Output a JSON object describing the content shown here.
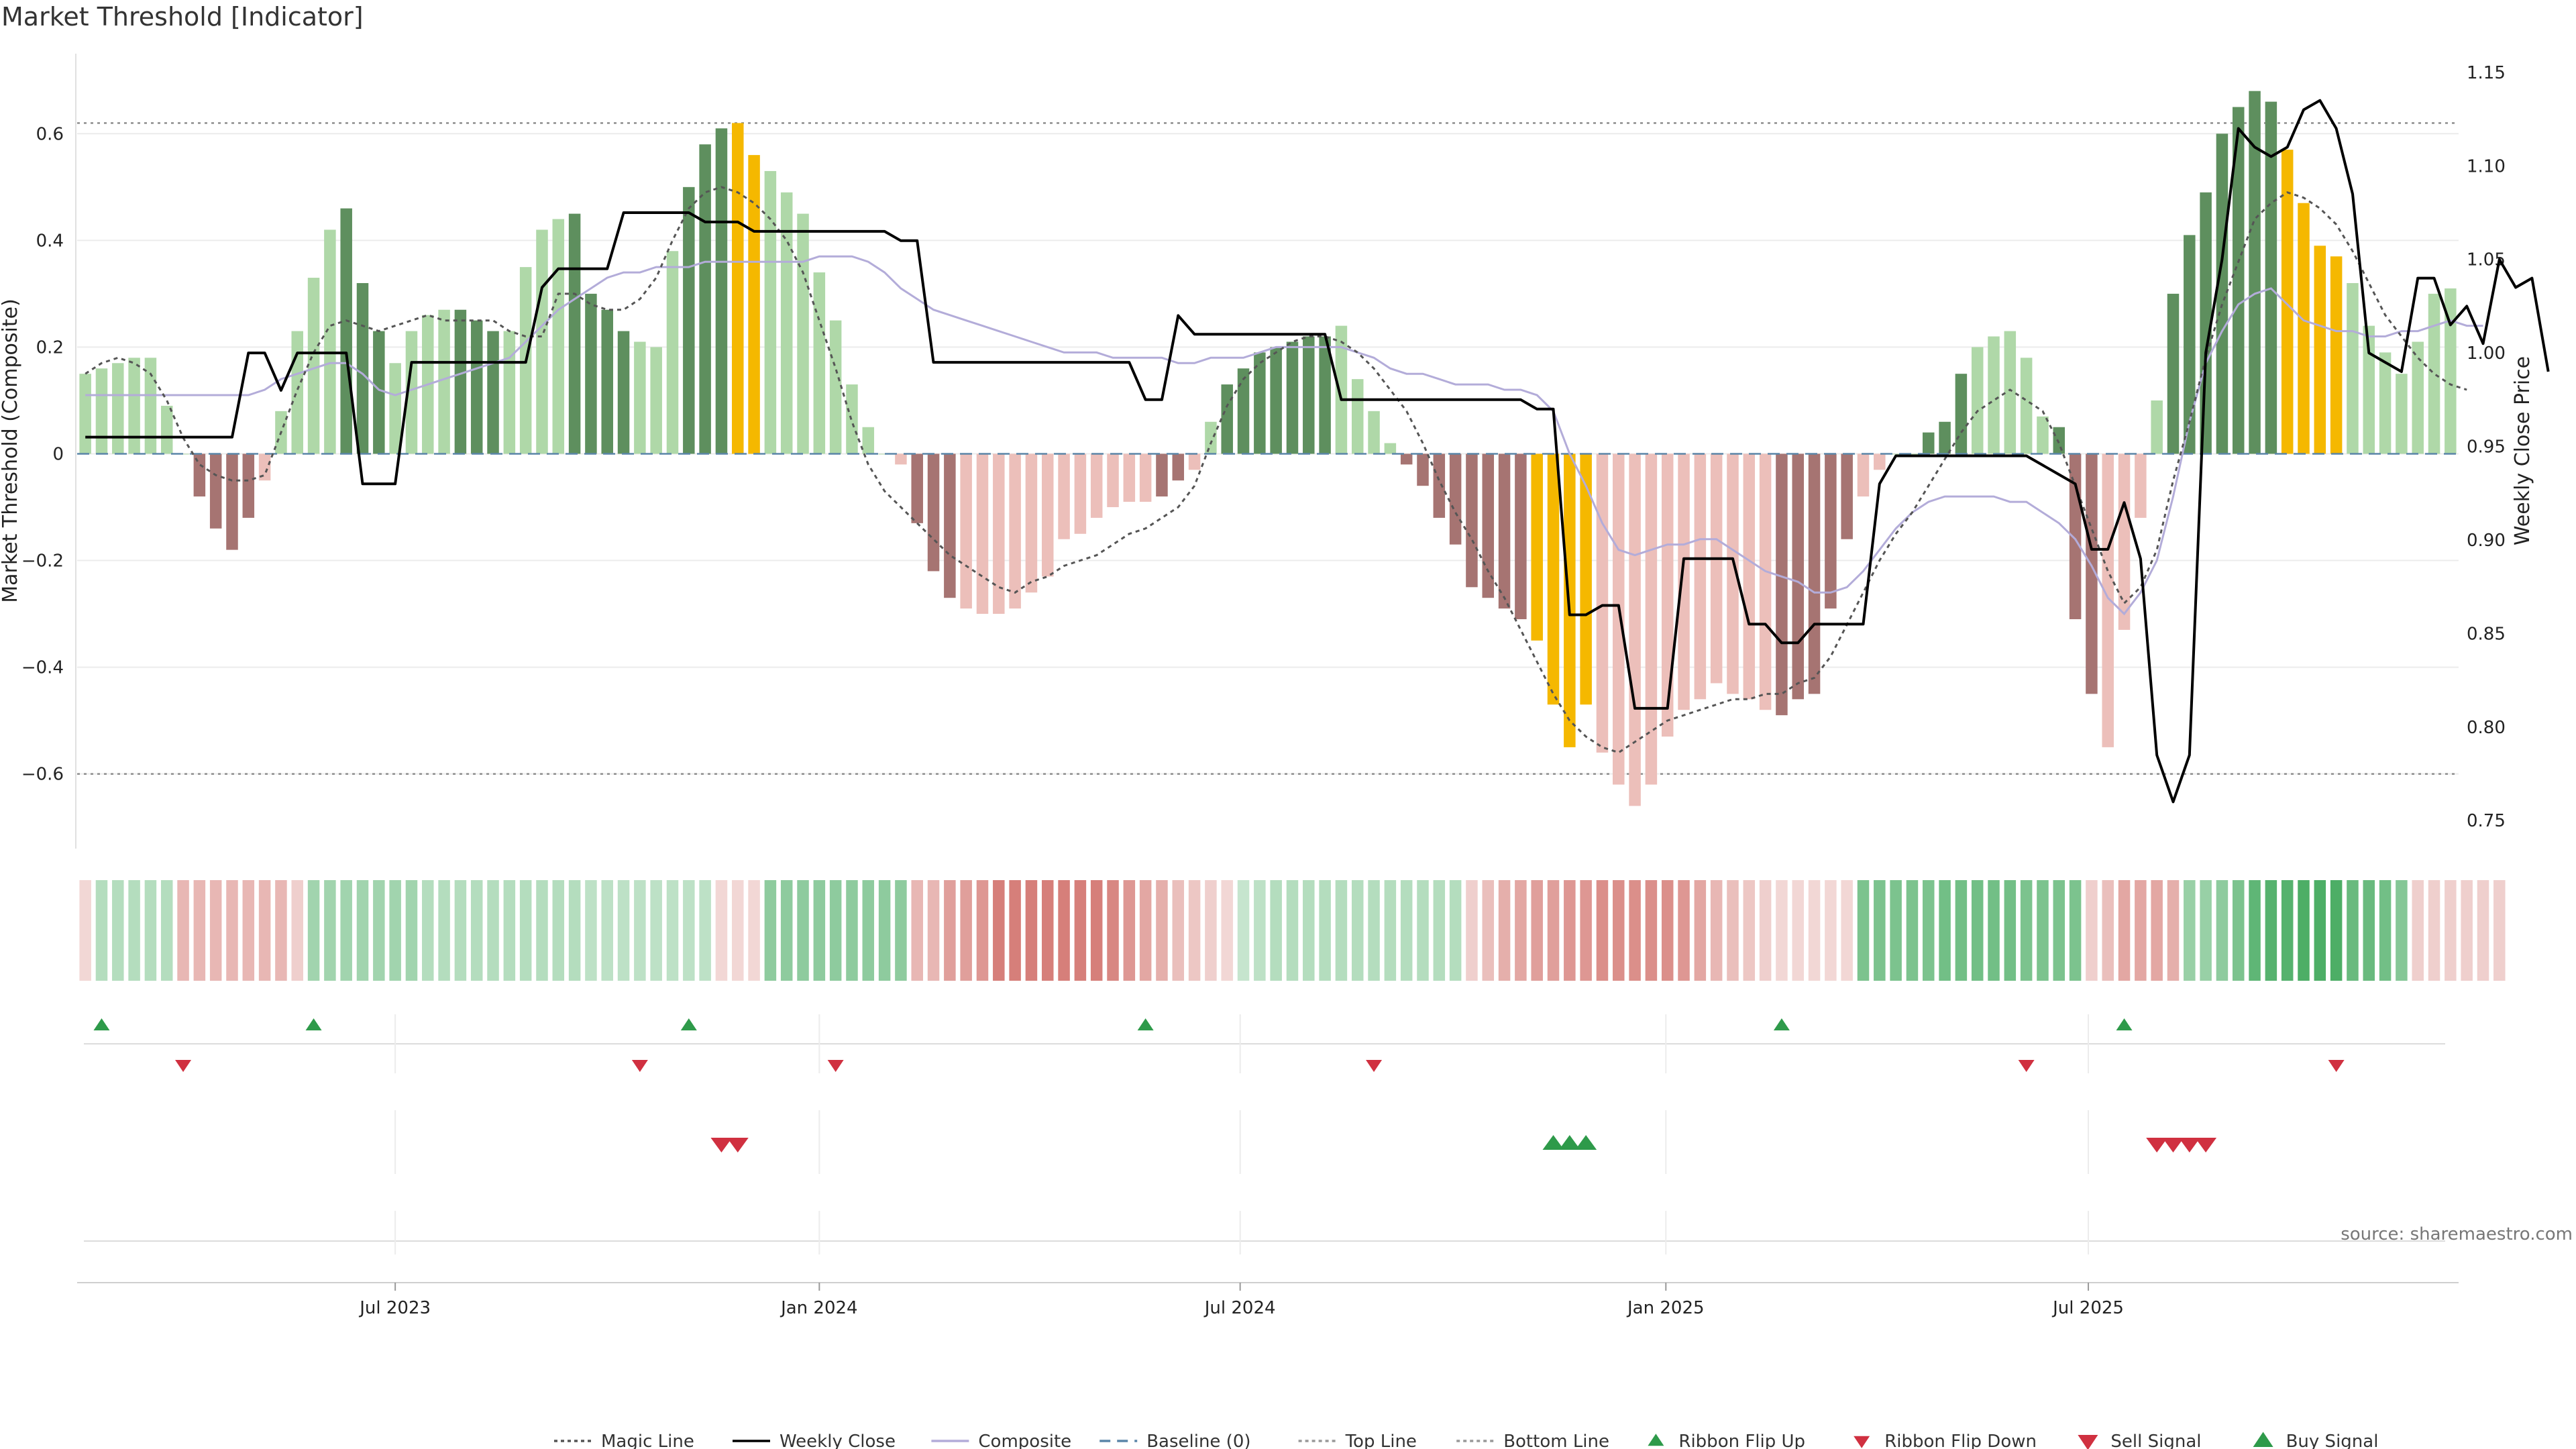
{
  "chart_data": {
    "type": "bar",
    "title": "Market Threshold [Indicator]",
    "ylabel": "Market Threshold (Composite)",
    "y2label": "Weekly Close Price",
    "ylim": [
      -0.74,
      0.75
    ],
    "y2lim": [
      0.735,
      1.16
    ],
    "yticks": [
      -0.6,
      -0.4,
      -0.2,
      0,
      0.2,
      0.4,
      0.6
    ],
    "ytick_labels": [
      "−0.6",
      "−0.4",
      "−0.2",
      "0",
      "0.2",
      "0.4",
      "0.6"
    ],
    "y2ticks": [
      0.75,
      0.8,
      0.85,
      0.9,
      0.95,
      1.0,
      1.05,
      1.1,
      1.15
    ],
    "y2tick_labels": [
      "0.75",
      "0.80",
      "0.85",
      "0.90",
      "0.95",
      "1.00",
      "1.05",
      "1.10",
      "1.15"
    ],
    "xtick_labels": [
      {
        "label": "Jul 2023",
        "index": 19.5
      },
      {
        "label": "Jan 2024",
        "index": 45.5
      },
      {
        "label": "Jul 2024",
        "index": 71.3
      },
      {
        "label": "Jan 2025",
        "index": 97.4
      },
      {
        "label": "Jul 2025",
        "index": 123.3
      }
    ],
    "top_line": 0.62,
    "bottom_line": -0.6,
    "composite": [
      0.15,
      0.16,
      0.17,
      0.18,
      0.18,
      0.09,
      0.0,
      -0.08,
      -0.14,
      -0.18,
      -0.12,
      -0.05,
      0.08,
      0.23,
      0.33,
      0.42,
      0.46,
      0.32,
      0.23,
      0.17,
      0.23,
      0.26,
      0.27,
      0.27,
      0.25,
      0.23,
      0.23,
      0.35,
      0.42,
      0.44,
      0.45,
      0.3,
      0.27,
      0.23,
      0.21,
      0.2,
      0.38,
      0.5,
      0.58,
      0.61,
      0.62,
      0.56,
      0.53,
      0.49,
      0.45,
      0.34,
      0.25,
      0.13,
      0.05,
      0.0,
      -0.02,
      -0.13,
      -0.22,
      -0.27,
      -0.29,
      -0.3,
      -0.3,
      -0.29,
      -0.26,
      -0.23,
      -0.16,
      -0.15,
      -0.12,
      -0.1,
      -0.09,
      -0.09,
      -0.08,
      -0.05,
      -0.03,
      0.06,
      0.13,
      0.16,
      0.19,
      0.2,
      0.21,
      0.22,
      0.22,
      0.24,
      0.14,
      0.08,
      0.02,
      -0.02,
      -0.06,
      -0.12,
      -0.17,
      -0.25,
      -0.27,
      -0.29,
      -0.31,
      -0.35,
      -0.47,
      -0.55,
      -0.47,
      -0.56,
      -0.62,
      -0.66,
      -0.62,
      -0.53,
      -0.48,
      -0.46,
      -0.43,
      -0.45,
      -0.46,
      -0.48,
      -0.49,
      -0.46,
      -0.45,
      -0.29,
      -0.16,
      -0.08,
      -0.03,
      0.0,
      0.0,
      0.04,
      0.06,
      0.15,
      0.2,
      0.22,
      0.23,
      0.18,
      0.07,
      0.05,
      -0.31,
      -0.45,
      -0.55,
      -0.33,
      -0.12,
      0.1,
      0.3,
      0.41,
      0.49,
      0.6,
      0.65,
      0.68,
      0.66,
      0.57,
      0.47,
      0.39,
      0.37,
      0.32,
      0.24,
      0.19,
      0.15,
      0.21,
      0.3,
      0.31
    ],
    "bar_classes": "lllllllddddllllldddlllldddllllddddllldddyyllllllllldddllllllllllllddlldddddddllllddddddddyyyyllllllllllldddddlllldddllllldddlllldddddddyyyyllllllllldd",
    "magic_line": [
      0.15,
      0.17,
      0.18,
      0.17,
      0.15,
      0.1,
      0.03,
      -0.02,
      -0.04,
      -0.05,
      -0.05,
      -0.04,
      0.04,
      0.12,
      0.19,
      0.24,
      0.25,
      0.24,
      0.23,
      0.24,
      0.25,
      0.26,
      0.25,
      0.25,
      0.25,
      0.25,
      0.23,
      0.22,
      0.22,
      0.3,
      0.3,
      0.28,
      0.27,
      0.27,
      0.29,
      0.33,
      0.4,
      0.46,
      0.49,
      0.5,
      0.49,
      0.47,
      0.44,
      0.4,
      0.34,
      0.25,
      0.16,
      0.06,
      -0.02,
      -0.07,
      -0.1,
      -0.13,
      -0.16,
      -0.19,
      -0.21,
      -0.23,
      -0.25,
      -0.26,
      -0.24,
      -0.23,
      -0.21,
      -0.2,
      -0.19,
      -0.17,
      -0.15,
      -0.14,
      -0.12,
      -0.1,
      -0.06,
      0.02,
      0.09,
      0.14,
      0.17,
      0.19,
      0.21,
      0.22,
      0.22,
      0.21,
      0.19,
      0.16,
      0.12,
      0.08,
      0.02,
      -0.05,
      -0.11,
      -0.16,
      -0.22,
      -0.27,
      -0.33,
      -0.39,
      -0.45,
      -0.5,
      -0.53,
      -0.55,
      -0.56,
      -0.54,
      -0.52,
      -0.5,
      -0.49,
      -0.48,
      -0.47,
      -0.46,
      -0.46,
      -0.45,
      -0.45,
      -0.43,
      -0.42,
      -0.38,
      -0.32,
      -0.26,
      -0.2,
      -0.15,
      -0.11,
      -0.06,
      -0.01,
      0.04,
      0.08,
      0.1,
      0.12,
      0.1,
      0.08,
      0.02,
      -0.06,
      -0.14,
      -0.22,
      -0.28,
      -0.25,
      -0.18,
      -0.05,
      0.06,
      0.18,
      0.28,
      0.36,
      0.44,
      0.47,
      0.49,
      0.48,
      0.46,
      0.43,
      0.38,
      0.32,
      0.26,
      0.22,
      0.18,
      0.15,
      0.13,
      0.12
    ],
    "composite_line": [
      0.11,
      0.11,
      0.11,
      0.11,
      0.11,
      0.11,
      0.11,
      0.11,
      0.11,
      0.11,
      0.11,
      0.12,
      0.14,
      0.15,
      0.16,
      0.17,
      0.17,
      0.15,
      0.12,
      0.11,
      0.12,
      0.13,
      0.14,
      0.15,
      0.16,
      0.17,
      0.18,
      0.21,
      0.24,
      0.27,
      0.29,
      0.31,
      0.33,
      0.34,
      0.34,
      0.35,
      0.35,
      0.35,
      0.36,
      0.36,
      0.36,
      0.36,
      0.36,
      0.36,
      0.36,
      0.37,
      0.37,
      0.37,
      0.36,
      0.34,
      0.31,
      0.29,
      0.27,
      0.26,
      0.25,
      0.24,
      0.23,
      0.22,
      0.21,
      0.2,
      0.19,
      0.19,
      0.19,
      0.18,
      0.18,
      0.18,
      0.18,
      0.17,
      0.17,
      0.18,
      0.18,
      0.18,
      0.19,
      0.2,
      0.2,
      0.2,
      0.2,
      0.2,
      0.19,
      0.18,
      0.16,
      0.15,
      0.15,
      0.14,
      0.13,
      0.13,
      0.13,
      0.12,
      0.12,
      0.11,
      0.08,
      0.0,
      -0.06,
      -0.13,
      -0.18,
      -0.19,
      -0.18,
      -0.17,
      -0.17,
      -0.16,
      -0.16,
      -0.18,
      -0.2,
      -0.22,
      -0.23,
      -0.24,
      -0.26,
      -0.26,
      -0.25,
      -0.22,
      -0.18,
      -0.14,
      -0.11,
      -0.09,
      -0.08,
      -0.08,
      -0.08,
      -0.08,
      -0.09,
      -0.09,
      -0.11,
      -0.13,
      -0.16,
      -0.21,
      -0.27,
      -0.3,
      -0.26,
      -0.2,
      -0.08,
      0.06,
      0.17,
      0.23,
      0.28,
      0.3,
      0.31,
      0.28,
      0.25,
      0.24,
      0.23,
      0.23,
      0.22,
      0.22,
      0.23,
      0.23,
      0.24,
      0.25,
      0.24,
      0.24
    ],
    "weekly_close": [
      0.955,
      0.955,
      0.955,
      0.955,
      0.955,
      0.955,
      0.955,
      0.955,
      0.955,
      0.955,
      1.0,
      1.0,
      0.98,
      1.0,
      1.0,
      1.0,
      1.0,
      0.93,
      0.93,
      0.93,
      0.995,
      0.995,
      0.995,
      0.995,
      0.995,
      0.995,
      0.995,
      0.995,
      1.035,
      1.045,
      1.045,
      1.045,
      1.045,
      1.075,
      1.075,
      1.075,
      1.075,
      1.075,
      1.07,
      1.07,
      1.07,
      1.065,
      1.065,
      1.065,
      1.065,
      1.065,
      1.065,
      1.065,
      1.065,
      1.065,
      1.06,
      1.06,
      0.995,
      0.995,
      0.995,
      0.995,
      0.995,
      0.995,
      0.995,
      0.995,
      0.995,
      0.995,
      0.995,
      0.995,
      0.995,
      0.975,
      0.975,
      1.02,
      1.01,
      1.01,
      1.01,
      1.01,
      1.01,
      1.01,
      1.01,
      1.01,
      1.01,
      0.975,
      0.975,
      0.975,
      0.975,
      0.975,
      0.975,
      0.975,
      0.975,
      0.975,
      0.975,
      0.975,
      0.975,
      0.97,
      0.97,
      0.86,
      0.86,
      0.865,
      0.865,
      0.81,
      0.81,
      0.81,
      0.89,
      0.89,
      0.89,
      0.89,
      0.855,
      0.855,
      0.845,
      0.845,
      0.855,
      0.855,
      0.855,
      0.855,
      0.93,
      0.945,
      0.945,
      0.945,
      0.945,
      0.945,
      0.945,
      0.945,
      0.945,
      0.945,
      0.94,
      0.935,
      0.93,
      0.895,
      0.895,
      0.92,
      0.89,
      0.785,
      0.76,
      0.785,
      1.0,
      1.05,
      1.12,
      1.11,
      1.105,
      1.11,
      1.13,
      1.135,
      1.12,
      1.085,
      1.0,
      0.995,
      0.99,
      1.04,
      1.04,
      1.015,
      1.025,
      1.005,
      1.05,
      1.035,
      1.04,
      0.99
    ],
    "ribbon": [
      -0.2,
      0.35,
      0.35,
      0.35,
      0.35,
      0.35,
      -0.4,
      -0.4,
      -0.4,
      -0.4,
      -0.4,
      -0.4,
      -0.4,
      -0.25,
      0.45,
      0.45,
      0.45,
      0.45,
      0.45,
      0.45,
      0.45,
      0.35,
      0.35,
      0.35,
      0.35,
      0.35,
      0.35,
      0.35,
      0.35,
      0.35,
      0.35,
      0.3,
      0.3,
      0.3,
      0.3,
      0.3,
      0.3,
      0.3,
      0.3,
      -0.2,
      -0.2,
      -0.2,
      0.55,
      0.55,
      0.55,
      0.55,
      0.55,
      0.55,
      0.55,
      0.55,
      0.55,
      -0.4,
      -0.4,
      -0.55,
      -0.55,
      -0.6,
      -0.75,
      -0.75,
      -0.75,
      -0.75,
      -0.75,
      -0.75,
      -0.75,
      -0.7,
      -0.6,
      -0.5,
      -0.45,
      -0.35,
      -0.3,
      -0.25,
      -0.2,
      0.25,
      0.3,
      0.35,
      0.35,
      0.35,
      0.35,
      0.35,
      0.35,
      0.35,
      0.35,
      0.35,
      0.35,
      0.35,
      0.35,
      -0.25,
      -0.35,
      -0.45,
      -0.5,
      -0.55,
      -0.55,
      -0.6,
      -0.6,
      -0.65,
      -0.65,
      -0.65,
      -0.65,
      -0.65,
      -0.6,
      -0.5,
      -0.4,
      -0.35,
      -0.3,
      -0.25,
      -0.2,
      -0.2,
      -0.2,
      -0.2,
      -0.2,
      0.65,
      0.65,
      0.65,
      0.65,
      0.65,
      0.7,
      0.7,
      0.7,
      0.7,
      0.7,
      0.65,
      0.65,
      0.65,
      0.65,
      -0.25,
      -0.35,
      -0.5,
      -0.5,
      -0.5,
      -0.45,
      0.5,
      0.5,
      0.55,
      0.65,
      0.8,
      0.85,
      0.85,
      0.9,
      0.9,
      0.9,
      0.75,
      0.75,
      0.7,
      0.6,
      -0.25,
      -0.25,
      -0.25,
      -0.25,
      -0.25,
      -0.25
    ],
    "ribbon_flip_up": [
      1,
      14,
      37,
      65,
      104,
      125
    ],
    "ribbon_flip_down": [
      6,
      34,
      46,
      79,
      119,
      138
    ],
    "sell_signal": [
      39,
      40,
      127,
      128,
      129,
      130
    ],
    "buy_signal": [
      90,
      91,
      92
    ],
    "legend": [
      {
        "label": "Magic Line",
        "kind": "dotted",
        "color": "#555555"
      },
      {
        "label": "Weekly Close",
        "kind": "solid",
        "color": "#000000"
      },
      {
        "label": "Composite",
        "kind": "solid",
        "color": "#b3acd9"
      },
      {
        "label": "Baseline (0)",
        "kind": "dashed",
        "color": "#5b86a8"
      },
      {
        "label": "Top Line",
        "kind": "dotted",
        "color": "#999999"
      },
      {
        "label": "Bottom Line",
        "kind": "dotted",
        "color": "#999999"
      },
      {
        "label": "Ribbon Flip Up",
        "kind": "tri-up-small",
        "color": "#2e9a4a"
      },
      {
        "label": "Ribbon Flip Down",
        "kind": "tri-down-small",
        "color": "#d03040"
      },
      {
        "label": "Sell Signal",
        "kind": "tri-down",
        "color": "#d03040"
      },
      {
        "label": "Buy Signal",
        "kind": "tri-up",
        "color": "#2e9a4a"
      }
    ],
    "source": "source: sharemaestro.com",
    "colors": {
      "bar_dark_green": "#5e8f5e",
      "bar_light_green": "#afd8a8",
      "bar_dark_red": "#a67472",
      "bar_light_red": "#ecbfba",
      "bar_extreme": "#f5b800",
      "ribbon_green": "#3aa556",
      "ribbon_red": "#c95750"
    }
  }
}
